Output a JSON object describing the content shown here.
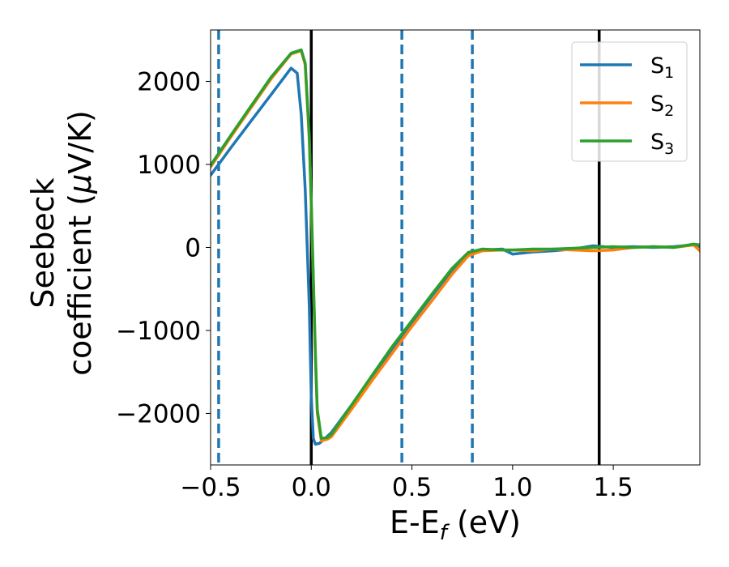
{
  "chart_data": {
    "type": "line",
    "title": "",
    "xlabel": {
      "main": "E-E",
      "sub": "f",
      "tail": " (eV)"
    },
    "ylabel": {
      "line1": "Seebeck",
      "line2_pre": "coefficient  (",
      "mu": "μ",
      "line2_post": "V/K)"
    },
    "xlim": [
      -0.5,
      1.93
    ],
    "ylim": [
      -2620,
      2620
    ],
    "xticks": [
      {
        "value": -0.5,
        "label": "−0.5"
      },
      {
        "value": 0.0,
        "label": "0.0"
      },
      {
        "value": 0.5,
        "label": "0.5"
      },
      {
        "value": 1.0,
        "label": "1.0"
      },
      {
        "value": 1.5,
        "label": "1.5"
      }
    ],
    "yticks": [
      {
        "value": 2000,
        "label": "2000"
      },
      {
        "value": 1000,
        "label": "1000"
      },
      {
        "value": 0,
        "label": "0"
      },
      {
        "value": -1000,
        "label": "−1000"
      },
      {
        "value": -2000,
        "label": "−2000"
      }
    ],
    "grid": false,
    "legend_position": "top-right",
    "vlines_solid": [
      0.0,
      1.43
    ],
    "vlines_dashed": [
      -0.46,
      0.45,
      0.8
    ],
    "solid_color": "#000000",
    "dashed_color": "#1f77b4",
    "series": [
      {
        "name": "S",
        "sub": "1",
        "color": "#1f77b4",
        "x": [
          -0.5,
          -0.4,
          -0.3,
          -0.2,
          -0.1,
          -0.07,
          -0.05,
          -0.03,
          -0.01,
          0.0,
          0.01,
          0.02,
          0.04,
          0.06,
          0.1,
          0.2,
          0.3,
          0.4,
          0.5,
          0.6,
          0.7,
          0.78,
          0.85,
          0.95,
          1.0,
          1.1,
          1.2,
          1.3,
          1.4,
          1.5,
          1.6,
          1.7,
          1.8,
          1.9,
          1.93
        ],
        "y": [
          870,
          1200,
          1520,
          1840,
          2160,
          2100,
          1600,
          700,
          -700,
          -1800,
          -2300,
          -2370,
          -2360,
          -2320,
          -2230,
          -1900,
          -1560,
          -1240,
          -900,
          -580,
          -270,
          -70,
          -30,
          -20,
          -80,
          -55,
          -40,
          -20,
          20,
          0,
          10,
          0,
          10,
          30,
          10
        ]
      },
      {
        "name": "S",
        "sub": "2",
        "color": "#ff7f0e",
        "x": [
          -0.5,
          -0.4,
          -0.3,
          -0.2,
          -0.1,
          -0.05,
          -0.03,
          -0.01,
          0.0,
          0.02,
          0.03,
          0.05,
          0.08,
          0.1,
          0.2,
          0.3,
          0.4,
          0.5,
          0.6,
          0.7,
          0.78,
          0.85,
          0.95,
          1.0,
          1.1,
          1.2,
          1.3,
          1.4,
          1.5,
          1.6,
          1.7,
          1.8,
          1.9,
          1.93
        ],
        "y": [
          970,
          1330,
          1680,
          2030,
          2330,
          2370,
          2200,
          1300,
          500,
          -1300,
          -2000,
          -2330,
          -2310,
          -2280,
          -1950,
          -1610,
          -1280,
          -950,
          -640,
          -320,
          -100,
          -40,
          -30,
          -30,
          -40,
          -20,
          -30,
          -40,
          -30,
          0,
          10,
          0,
          30,
          -40
        ]
      },
      {
        "name": "S",
        "sub": "3",
        "color": "#2ca02c",
        "x": [
          -0.5,
          -0.4,
          -0.3,
          -0.2,
          -0.1,
          -0.05,
          -0.03,
          -0.01,
          0.0,
          0.02,
          0.03,
          0.05,
          0.08,
          0.1,
          0.2,
          0.3,
          0.4,
          0.5,
          0.6,
          0.7,
          0.78,
          0.85,
          0.95,
          1.0,
          1.1,
          1.2,
          1.3,
          1.4,
          1.5,
          1.6,
          1.7,
          1.8,
          1.9,
          1.93
        ],
        "y": [
          990,
          1350,
          1700,
          2050,
          2340,
          2380,
          2220,
          1350,
          550,
          -1250,
          -1950,
          -2300,
          -2290,
          -2250,
          -1900,
          -1550,
          -1200,
          -880,
          -560,
          -250,
          -60,
          -20,
          -30,
          -30,
          -20,
          -20,
          -10,
          0,
          10,
          0,
          10,
          0,
          40,
          30
        ]
      }
    ]
  }
}
